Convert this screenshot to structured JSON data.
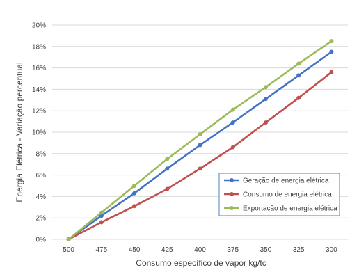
{
  "chart_data": {
    "type": "line",
    "title": "",
    "xlabel": "Consumo específico de vapor kg/tc",
    "ylabel": "Energia Elétrica - Variação percentual",
    "categories": [
      "500",
      "475",
      "450",
      "425",
      "400",
      "375",
      "350",
      "325",
      "300"
    ],
    "ylim": [
      0,
      20
    ],
    "ytick_step": 2,
    "ytick_labels": [
      "0%",
      "2%",
      "4%",
      "6%",
      "8%",
      "10%",
      "12%",
      "14%",
      "16%",
      "18%",
      "20%"
    ],
    "grid": "horizontal",
    "legend_position": "lower-right",
    "series": [
      {
        "name": "Geração de energia elétrica",
        "color": "#4472C4",
        "values": [
          0,
          2.2,
          4.3,
          6.6,
          8.8,
          10.9,
          13.1,
          15.3,
          17.5
        ]
      },
      {
        "name": "Consumo de energia elétrica",
        "color": "#C0504D",
        "values": [
          0,
          1.6,
          3.1,
          4.7,
          6.6,
          8.6,
          10.9,
          13.2,
          15.6
        ]
      },
      {
        "name": "Exportação de energia elétrica",
        "color": "#9BBB59",
        "values": [
          0,
          2.5,
          5.0,
          7.5,
          9.8,
          12.1,
          14.2,
          16.4,
          18.5
        ]
      }
    ]
  }
}
